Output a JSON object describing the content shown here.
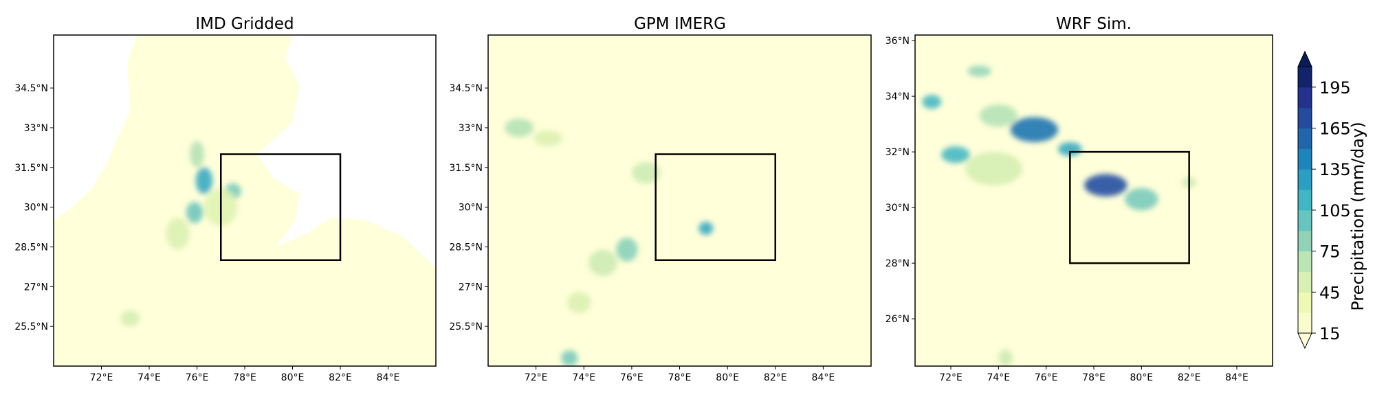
{
  "chart_data": {
    "type": "heatmap",
    "panels": [
      {
        "title": "IMD Gridded",
        "lon_range": [
          70,
          86
        ],
        "lat_range": [
          24,
          36.5
        ],
        "xticks": [
          72,
          74,
          76,
          78,
          80,
          82,
          84
        ],
        "xtick_labels": [
          "72°E",
          "74°E",
          "76°E",
          "78°E",
          "80°E",
          "82°E",
          "84°E"
        ],
        "yticks": [
          25.5,
          27,
          28.5,
          30,
          31.5,
          33,
          34.5
        ],
        "ytick_labels": [
          "25.5°N",
          "27°N",
          "28.5°N",
          "30°N",
          "31.5°N",
          "33°N",
          "34.5°N"
        ],
        "box": {
          "lon": [
            77,
            82
          ],
          "lat": [
            28,
            32
          ]
        },
        "masked_outside_domain": true,
        "rain_cells": [
          {
            "lon": 76.3,
            "lat": 31.0,
            "value": 120,
            "r_lon": 0.35,
            "r_lat": 0.5
          },
          {
            "lon": 75.9,
            "lat": 29.8,
            "value": 95,
            "r_lon": 0.35,
            "r_lat": 0.4
          },
          {
            "lon": 77.5,
            "lat": 30.6,
            "value": 90,
            "r_lon": 0.35,
            "r_lat": 0.3
          },
          {
            "lon": 76.0,
            "lat": 32.0,
            "value": 70,
            "r_lon": 0.3,
            "r_lat": 0.5
          },
          {
            "lon": 73.2,
            "lat": 25.8,
            "value": 55,
            "r_lon": 0.4,
            "r_lat": 0.3
          },
          {
            "lon": 75.2,
            "lat": 29.0,
            "value": 50,
            "r_lon": 0.5,
            "r_lat": 0.6
          },
          {
            "lon": 77.0,
            "lat": 30.0,
            "value": 48,
            "r_lon": 0.7,
            "r_lat": 0.7
          }
        ]
      },
      {
        "title": "GPM IMERG",
        "lon_range": [
          70,
          86
        ],
        "lat_range": [
          24,
          36.5
        ],
        "xticks": [
          72,
          74,
          76,
          78,
          80,
          82,
          84
        ],
        "xtick_labels": [
          "72°E",
          "74°E",
          "76°E",
          "78°E",
          "80°E",
          "82°E",
          "84°E"
        ],
        "yticks": [
          25.5,
          27,
          28.5,
          30,
          31.5,
          33,
          34.5
        ],
        "ytick_labels": [
          "25.5°N",
          "27°N",
          "28.5°N",
          "30°N",
          "31.5°N",
          "33°N",
          "34.5°N"
        ],
        "box": {
          "lon": [
            77,
            82
          ],
          "lat": [
            28,
            32
          ]
        },
        "masked_outside_domain": false,
        "rain_cells": [
          {
            "lon": 71.3,
            "lat": 33.0,
            "value": 70,
            "r_lon": 0.6,
            "r_lat": 0.35
          },
          {
            "lon": 72.5,
            "lat": 32.6,
            "value": 50,
            "r_lon": 0.6,
            "r_lat": 0.3
          },
          {
            "lon": 76.6,
            "lat": 31.3,
            "value": 60,
            "r_lon": 0.6,
            "r_lat": 0.4
          },
          {
            "lon": 79.1,
            "lat": 29.2,
            "value": 120,
            "r_lon": 0.3,
            "r_lat": 0.25
          },
          {
            "lon": 75.8,
            "lat": 28.4,
            "value": 85,
            "r_lon": 0.45,
            "r_lat": 0.45
          },
          {
            "lon": 74.8,
            "lat": 27.9,
            "value": 60,
            "r_lon": 0.6,
            "r_lat": 0.5
          },
          {
            "lon": 73.8,
            "lat": 26.4,
            "value": 50,
            "r_lon": 0.5,
            "r_lat": 0.4
          },
          {
            "lon": 73.4,
            "lat": 24.3,
            "value": 90,
            "r_lon": 0.35,
            "r_lat": 0.3
          }
        ]
      },
      {
        "title": "WRF Sim.",
        "lon_range": [
          70.5,
          85.5
        ],
        "lat_range": [
          24.3,
          36.2
        ],
        "xticks": [
          72,
          74,
          76,
          78,
          80,
          82,
          84
        ],
        "xtick_labels": [
          "72°E",
          "74°E",
          "76°E",
          "78°E",
          "80°E",
          "82°E",
          "84°E"
        ],
        "yticks": [
          26,
          28,
          30,
          32,
          34,
          36
        ],
        "ytick_labels": [
          "26°N",
          "28°N",
          "30°N",
          "32°N",
          "34°N",
          "36°N"
        ],
        "box": {
          "lon": [
            77,
            82
          ],
          "lat": [
            28,
            32
          ]
        },
        "masked_outside_domain": false,
        "rain_cells": [
          {
            "lon": 71.2,
            "lat": 33.8,
            "value": 110,
            "r_lon": 0.4,
            "r_lat": 0.25
          },
          {
            "lon": 73.2,
            "lat": 34.9,
            "value": 80,
            "r_lon": 0.5,
            "r_lat": 0.2
          },
          {
            "lon": 72.2,
            "lat": 31.9,
            "value": 110,
            "r_lon": 0.6,
            "r_lat": 0.3
          },
          {
            "lon": 75.5,
            "lat": 32.8,
            "value": 150,
            "r_lon": 1.0,
            "r_lat": 0.45
          },
          {
            "lon": 74.0,
            "lat": 33.3,
            "value": 70,
            "r_lon": 0.8,
            "r_lat": 0.4
          },
          {
            "lon": 77.0,
            "lat": 32.1,
            "value": 120,
            "r_lon": 0.5,
            "r_lat": 0.25
          },
          {
            "lon": 78.5,
            "lat": 30.8,
            "value": 170,
            "r_lon": 0.9,
            "r_lat": 0.4
          },
          {
            "lon": 80.0,
            "lat": 30.3,
            "value": 90,
            "r_lon": 0.7,
            "r_lat": 0.4
          },
          {
            "lon": 74.3,
            "lat": 24.6,
            "value": 60,
            "r_lon": 0.3,
            "r_lat": 0.3
          },
          {
            "lon": 82.0,
            "lat": 30.9,
            "value": 60,
            "r_lon": 0.3,
            "r_lat": 0.2
          },
          {
            "lon": 73.8,
            "lat": 31.4,
            "value": 55,
            "r_lon": 1.2,
            "r_lat": 0.6
          }
        ]
      }
    ],
    "colorbar": {
      "label": "Precipitation (mm/day)",
      "range": [
        15,
        210
      ],
      "ticks": [
        15,
        45,
        75,
        105,
        135,
        165,
        195
      ],
      "tick_labels": [
        "15",
        "45",
        "75",
        "105",
        "135",
        "165",
        "195"
      ],
      "extend": "both",
      "colormap": "YlGnBu",
      "colors": [
        "#ffffd9",
        "#edf8b1",
        "#c7e9b4",
        "#7fcdbb",
        "#41b6c4",
        "#1d91c0",
        "#225ea8",
        "#253494",
        "#081d58"
      ]
    }
  }
}
